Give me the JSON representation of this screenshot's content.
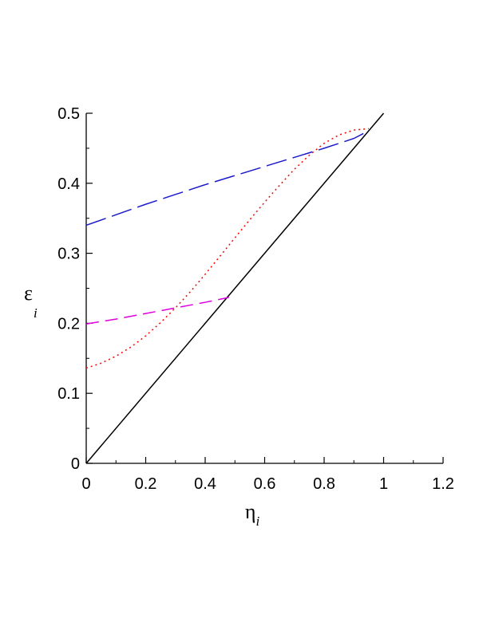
{
  "chart_data": {
    "type": "line",
    "xlabel": {
      "base": "η",
      "sub": "i"
    },
    "ylabel": {
      "base": "ε",
      "sub": "i"
    },
    "xlim": [
      0,
      1.2
    ],
    "ylim": [
      0,
      0.5
    ],
    "xticks": [
      0,
      0.2,
      0.4,
      0.6,
      0.8,
      1,
      1.2
    ],
    "xtick_labels": [
      "0",
      "0.2",
      "0.4",
      "0.6",
      "0.8",
      "1",
      "1.2"
    ],
    "yticks": [
      0,
      0.1,
      0.2,
      0.3,
      0.4,
      0.5
    ],
    "ytick_labels": [
      "0",
      "0.1",
      "0.2",
      "0.3",
      "0.4",
      "0.5"
    ],
    "grid": false,
    "legend": "none",
    "series": [
      {
        "style": "solid",
        "color": "#000000",
        "x": [
          0,
          1.0
        ],
        "y": [
          0,
          0.5
        ]
      },
      {
        "style": "long-dash",
        "color": "#1a1acc",
        "x": [
          0,
          0.1,
          0.2,
          0.3,
          0.4,
          0.5,
          0.6,
          0.7,
          0.8,
          0.9,
          0.95
        ],
        "y": [
          0.34,
          0.355,
          0.37,
          0.384,
          0.398,
          0.411,
          0.424,
          0.437,
          0.45,
          0.464,
          0.475
        ]
      },
      {
        "style": "dotted",
        "color": "#ff0000",
        "x": [
          0,
          0.05,
          0.1,
          0.15,
          0.2,
          0.25,
          0.3,
          0.35,
          0.4,
          0.45,
          0.5,
          0.55,
          0.6,
          0.65,
          0.7,
          0.75,
          0.8,
          0.85,
          0.9,
          0.95
        ],
        "y": [
          0.136,
          0.143,
          0.153,
          0.166,
          0.182,
          0.201,
          0.222,
          0.245,
          0.27,
          0.296,
          0.322,
          0.348,
          0.373,
          0.397,
          0.42,
          0.44,
          0.457,
          0.469,
          0.476,
          0.478
        ]
      },
      {
        "style": "dashed",
        "color": "#dd00dd",
        "x": [
          0,
          0.1,
          0.2,
          0.3,
          0.4,
          0.48
        ],
        "y": [
          0.199,
          0.206,
          0.214,
          0.222,
          0.23,
          0.237
        ]
      }
    ]
  }
}
